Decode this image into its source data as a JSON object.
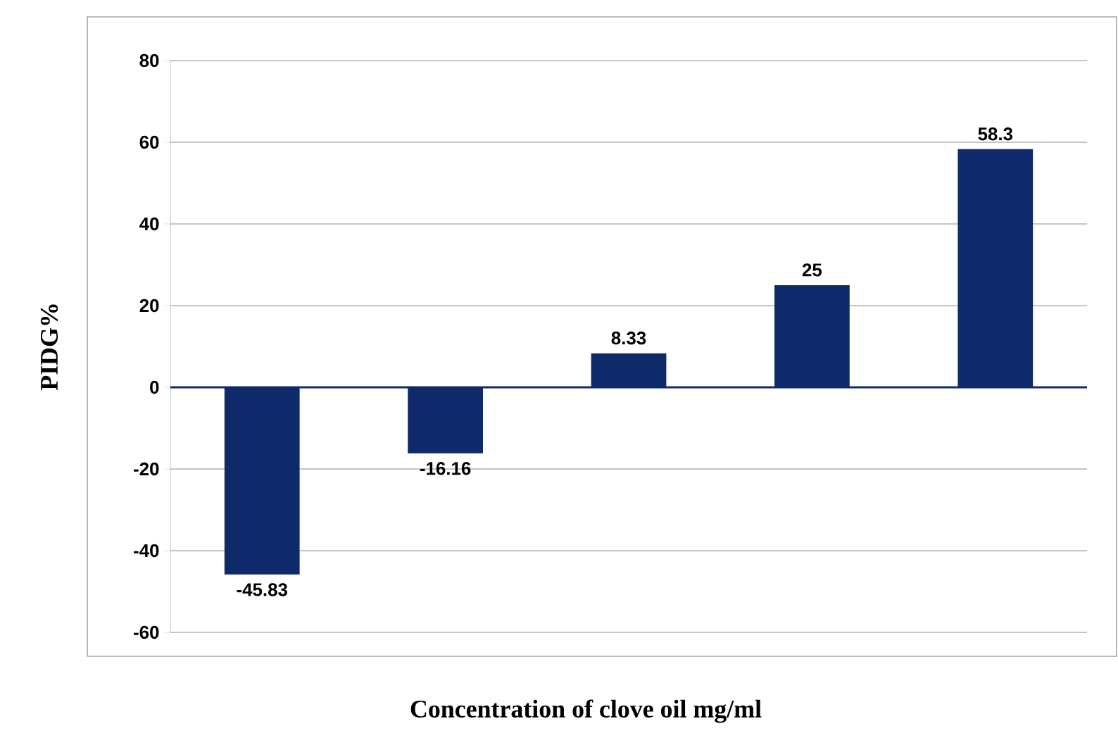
{
  "chart_data": {
    "type": "bar",
    "xlabel": "Concentration of clove oil mg/ml",
    "ylabel": "PIDG%",
    "categories": [
      null,
      null,
      null,
      null,
      null
    ],
    "values": [
      -45.83,
      -16.16,
      8.33,
      25,
      58.3
    ],
    "color": "#0f2a6b",
    "ylim": [
      -60,
      80
    ],
    "yticks": [
      -60,
      -40,
      -20,
      0,
      20,
      40,
      60,
      80
    ],
    "grid": "y",
    "data_labels": true,
    "ref_lines": [
      {
        "axis": "y",
        "value": 0,
        "color": "#0f2a6b"
      }
    ]
  }
}
